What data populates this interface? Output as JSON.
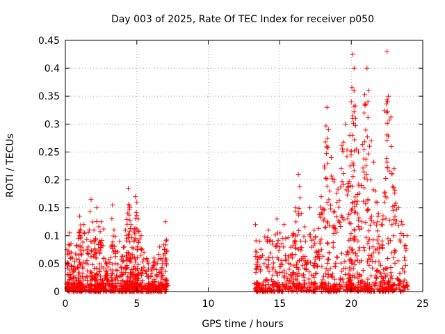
{
  "chart_data": {
    "type": "scatter",
    "title": "Day 003 of 2025, Rate Of TEC Index for receiver p050",
    "xlabel": "GPS time / hours",
    "ylabel": "ROTI / TECUs",
    "xlim": [
      0,
      25
    ],
    "ylim": [
      0,
      0.45
    ],
    "xticks": [
      "0",
      "5",
      "10",
      "15",
      "20",
      "25"
    ],
    "yticks": [
      "0",
      "0.05",
      "0.1",
      "0.15",
      "0.2",
      "0.25",
      "0.3",
      "0.35",
      "0.4",
      "0.45"
    ],
    "grid": true,
    "marker": "+",
    "color": "#ff0000",
    "series": [
      {
        "x": [
          0.1,
          0.2,
          0.3,
          0.5,
          0.7,
          0.9,
          1.0,
          1.1,
          1.3,
          1.6,
          1.8,
          2.0,
          2.1,
          2.2,
          2.4,
          2.5,
          2.7,
          2.9,
          3.2,
          3.3,
          3.5,
          3.8,
          4.0,
          4.2,
          4.3,
          4.4,
          4.5,
          4.6,
          4.8,
          4.9,
          5.0,
          5.1,
          5.3,
          5.5,
          5.8,
          6.0,
          6.2,
          6.4,
          6.6,
          6.8,
          7.0,
          7.1,
          13.3,
          13.4,
          13.6,
          13.9,
          14.2,
          14.5,
          14.8,
          15.0,
          15.3,
          15.6,
          15.9,
          16.1,
          16.3,
          16.5,
          16.8,
          17.1,
          17.4,
          17.6,
          17.9,
          18.1,
          18.3,
          18.4,
          18.6,
          18.8,
          19.0,
          19.3,
          19.6,
          19.8,
          19.9,
          20.0,
          20.1,
          20.2,
          20.3,
          20.5,
          20.7,
          20.9,
          21.1,
          21.2,
          21.4,
          21.7,
          21.9,
          22.1,
          22.3,
          22.5,
          22.6,
          22.8,
          23.0,
          23.3,
          23.6,
          23.9
        ],
        "y": [
          0.075,
          0.03,
          0.105,
          0.06,
          0.04,
          0.095,
          0.135,
          0.05,
          0.12,
          0.08,
          0.165,
          0.11,
          0.07,
          0.15,
          0.04,
          0.125,
          0.06,
          0.03,
          0.08,
          0.155,
          0.05,
          0.09,
          0.03,
          0.11,
          0.07,
          0.185,
          0.15,
          0.12,
          0.09,
          0.17,
          0.16,
          0.13,
          0.1,
          0.07,
          0.05,
          0.04,
          0.06,
          0.03,
          0.08,
          0.05,
          0.125,
          0.02,
          0.12,
          0.07,
          0.09,
          0.05,
          0.11,
          0.04,
          0.13,
          0.08,
          0.12,
          0.06,
          0.1,
          0.15,
          0.21,
          0.14,
          0.09,
          0.15,
          0.11,
          0.07,
          0.17,
          0.13,
          0.33,
          0.29,
          0.24,
          0.2,
          0.16,
          0.22,
          0.3,
          0.18,
          0.28,
          0.34,
          0.425,
          0.4,
          0.31,
          0.25,
          0.19,
          0.32,
          0.4,
          0.36,
          0.27,
          0.18,
          0.14,
          0.12,
          0.16,
          0.43,
          0.35,
          0.26,
          0.22,
          0.15,
          0.12,
          0.1
        ]
      }
    ]
  }
}
